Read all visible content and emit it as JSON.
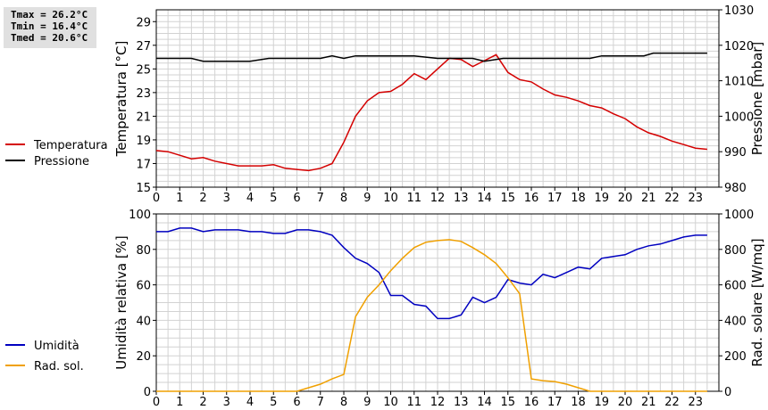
{
  "stats": {
    "tmax": "Tmax = 26.2°C",
    "tmin": "Tmin = 16.4°C",
    "tmed": "Tmed = 20.6°C"
  },
  "chart_data": [
    {
      "type": "line",
      "x_ticks": [
        "0",
        "1",
        "2",
        "3",
        "4",
        "5",
        "6",
        "7",
        "8",
        "9",
        "10",
        "11",
        "12",
        "13",
        "14",
        "15",
        "16",
        "17",
        "18",
        "19",
        "20",
        "21",
        "22",
        "23"
      ],
      "xlim": [
        0,
        24
      ],
      "ylabel": "Temperatura [°C]",
      "ylim": [
        15,
        30
      ],
      "y_ticks": [
        "15",
        "17",
        "19",
        "21",
        "23",
        "25",
        "27",
        "29"
      ],
      "y2label": "Pressione [mbar]",
      "y2lim": [
        980,
        1030
      ],
      "y2_ticks": [
        "980",
        "990",
        "1000",
        "1010",
        "1020",
        "1030"
      ],
      "grid": true,
      "legend": "left",
      "series": [
        {
          "name": "Temperatura",
          "axis": "left",
          "color": "#d40000",
          "x": [
            0,
            0.5,
            1,
            1.5,
            2,
            2.5,
            3,
            3.5,
            4,
            4.5,
            5,
            5.5,
            6,
            6.5,
            7,
            7.5,
            8,
            8.5,
            9,
            9.5,
            10,
            10.5,
            11,
            11.5,
            12,
            12.5,
            13,
            13.5,
            14,
            14.5,
            15,
            15.5,
            16,
            16.5,
            17,
            17.5,
            18,
            18.5,
            19,
            19.5,
            20,
            20.5,
            21,
            21.5,
            22,
            22.5,
            23,
            23.5
          ],
          "values": [
            18.1,
            18.0,
            17.7,
            17.4,
            17.5,
            17.2,
            17.0,
            16.8,
            16.8,
            16.8,
            16.9,
            16.6,
            16.5,
            16.4,
            16.6,
            17.0,
            18.8,
            21.0,
            22.3,
            23.0,
            23.1,
            23.7,
            24.6,
            24.1,
            25.0,
            25.9,
            25.8,
            25.2,
            25.7,
            26.2,
            24.7,
            24.1,
            23.9,
            23.3,
            22.8,
            22.6,
            22.3,
            21.9,
            21.7,
            21.2,
            20.8,
            20.1,
            19.6,
            19.3,
            18.9,
            18.6,
            18.3,
            18.2
          ]
        },
        {
          "name": "Pressione",
          "axis": "right",
          "color": "#000000",
          "x": [
            0,
            1.5,
            2,
            4,
            4.8,
            7,
            7.5,
            8,
            8.5,
            11,
            12,
            13.5,
            14,
            14.8,
            18.5,
            19,
            20.8,
            21.2,
            23.5
          ],
          "values": [
            1016.3,
            1016.3,
            1015.5,
            1015.5,
            1016.3,
            1016.3,
            1017.0,
            1016.3,
            1017.0,
            1017.0,
            1016.3,
            1016.3,
            1015.5,
            1016.3,
            1016.3,
            1017.0,
            1017.0,
            1017.8,
            1017.8
          ]
        }
      ]
    },
    {
      "type": "line",
      "x_ticks": [
        "0",
        "1",
        "2",
        "3",
        "4",
        "5",
        "6",
        "7",
        "8",
        "9",
        "10",
        "11",
        "12",
        "13",
        "14",
        "15",
        "16",
        "17",
        "18",
        "19",
        "20",
        "21",
        "22",
        "23"
      ],
      "xlim": [
        0,
        24
      ],
      "ylabel": "Umidità relativa [%]",
      "ylim": [
        0,
        100
      ],
      "y_ticks": [
        "0",
        "20",
        "40",
        "60",
        "80",
        "100"
      ],
      "y2label": "Rad. solare [W/mq]",
      "y2lim": [
        0,
        1000
      ],
      "y2_ticks": [
        "0",
        "200",
        "400",
        "600",
        "800",
        "1000"
      ],
      "grid": true,
      "legend": "left",
      "series": [
        {
          "name": "Umidità",
          "axis": "left",
          "color": "#0000c0",
          "x": [
            0,
            0.5,
            1,
            1.5,
            2,
            2.5,
            3,
            3.5,
            4,
            4.5,
            5,
            5.5,
            6,
            6.5,
            7,
            7.5,
            8,
            8.5,
            9,
            9.5,
            10,
            10.5,
            11,
            11.5,
            12,
            12.5,
            13,
            13.5,
            14,
            14.5,
            15,
            15.5,
            16,
            16.5,
            17,
            17.5,
            18,
            18.5,
            19,
            19.5,
            20,
            20.5,
            21,
            21.5,
            22,
            22.5,
            23,
            23.5
          ],
          "values": [
            90,
            90,
            92,
            92,
            90,
            91,
            91,
            91,
            90,
            90,
            89,
            89,
            91,
            91,
            90,
            88,
            81,
            75,
            72,
            67,
            54,
            54,
            49,
            48,
            41,
            41,
            43,
            53,
            50,
            53,
            63,
            61,
            60,
            66,
            64,
            67,
            70,
            69,
            75,
            76,
            77,
            80,
            82,
            83,
            85,
            87,
            88,
            88
          ]
        },
        {
          "name": "Rad. sol.",
          "axis": "right",
          "color": "#f0a000",
          "x": [
            0,
            1,
            2,
            3,
            4,
            5,
            6,
            6.5,
            7,
            7.5,
            8,
            8.5,
            9,
            9.5,
            10,
            10.5,
            11,
            11.5,
            12,
            12.5,
            13,
            13.5,
            14,
            14.5,
            15,
            15.5,
            16,
            16.5,
            17,
            17.5,
            18,
            18.5,
            19,
            20,
            21,
            22,
            23,
            23.5
          ],
          "values": [
            0,
            0,
            0,
            0,
            0,
            0,
            0,
            20,
            40,
            70,
            95,
            420,
            530,
            600,
            680,
            750,
            810,
            840,
            850,
            855,
            845,
            810,
            770,
            720,
            640,
            550,
            70,
            60,
            55,
            40,
            20,
            0,
            0,
            0,
            0,
            0,
            0,
            0
          ]
        }
      ]
    }
  ]
}
